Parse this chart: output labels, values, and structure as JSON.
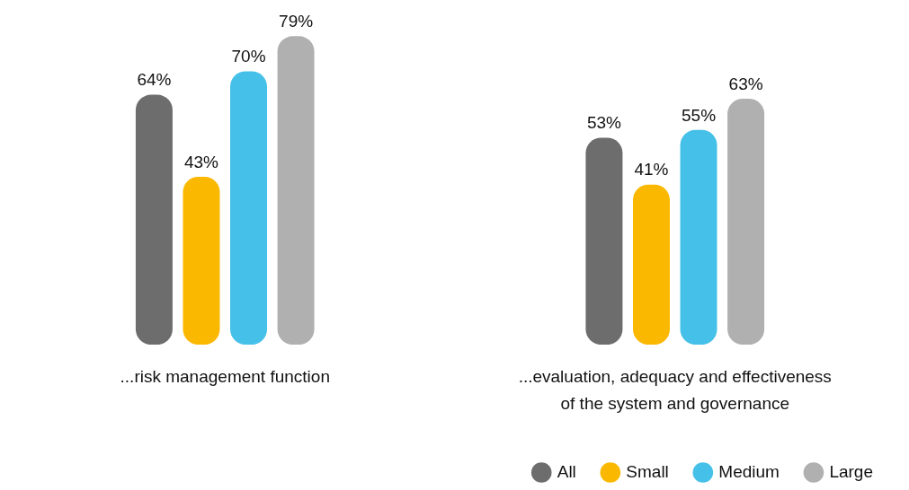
{
  "chart_data": {
    "type": "bar",
    "categories": [
      "...risk management function",
      "...evaluation, adequacy and effectiveness of the system and governance"
    ],
    "series": [
      {
        "name": "All",
        "color": "#6d6d6d",
        "values": [
          64,
          53
        ],
        "value_labels": [
          "64%",
          "53%"
        ]
      },
      {
        "name": "Small",
        "color": "#fbb800",
        "values": [
          43,
          41
        ],
        "value_labels": [
          "43%",
          "41%"
        ]
      },
      {
        "name": "Medium",
        "color": "#45c0e8",
        "values": [
          70,
          55
        ],
        "value_labels": [
          "70%",
          "55%"
        ]
      },
      {
        "name": "Large",
        "color": "#b0b0b0",
        "values": [
          79,
          63
        ],
        "value_labels": [
          "79%",
          "63%"
        ]
      }
    ],
    "legend": "bottom right",
    "grid": false
  }
}
